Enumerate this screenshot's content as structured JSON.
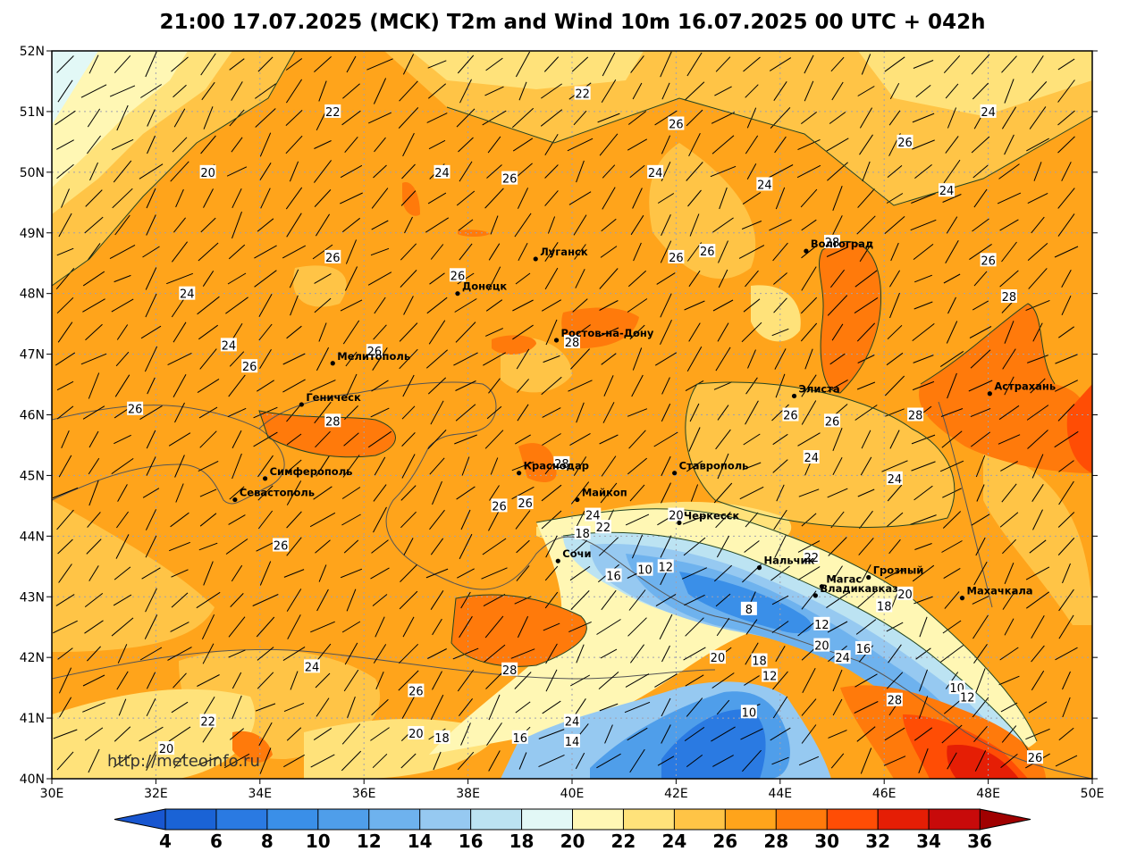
{
  "title": "21:00 17.07.2025 (MCK) T2m and Wind 10m 16.07.2025 00 UTC + 042h",
  "watermark": "http://meteoinfo.ru",
  "axes": {
    "lat_labels": [
      "52N",
      "51N",
      "50N",
      "49N",
      "48N",
      "47N",
      "46N",
      "45N",
      "44N",
      "43N",
      "42N",
      "41N",
      "40N"
    ],
    "lon_labels": [
      "30E",
      "32E",
      "34E",
      "36E",
      "38E",
      "40E",
      "42E",
      "44E",
      "46E",
      "48E",
      "50E"
    ]
  },
  "colorbar": {
    "labels": [
      "4",
      "6",
      "8",
      "10",
      "12",
      "14",
      "16",
      "18",
      "20",
      "22",
      "24",
      "26",
      "28",
      "30",
      "32",
      "34",
      "36"
    ],
    "colors": [
      "#1a63d6",
      "#2a7ae2",
      "#3a8fe8",
      "#4f9eea",
      "#6eb2ee",
      "#96c9f1",
      "#bce3f2",
      "#e2f8f6",
      "#fff7b4",
      "#ffe27a",
      "#ffc446",
      "#ffa41b",
      "#ff7a0b",
      "#ff4d05",
      "#e51e05",
      "#c80a0a"
    ],
    "low_end_color": "#1856d0",
    "high_end_color": "#a00000"
  },
  "cities": [
    {
      "name": "Луганск",
      "lon": 39.3,
      "lat": 48.57
    },
    {
      "name": "Донецк",
      "lon": 37.8,
      "lat": 48.0
    },
    {
      "name": "Волгоград",
      "lon": 44.5,
      "lat": 48.7
    },
    {
      "name": "Ростов-на-Дону",
      "lon": 39.7,
      "lat": 47.23
    },
    {
      "name": "Мелитополь",
      "lon": 35.4,
      "lat": 46.85
    },
    {
      "name": "Геническ",
      "lon": 34.8,
      "lat": 46.17
    },
    {
      "name": "Элиста",
      "lon": 44.27,
      "lat": 46.31
    },
    {
      "name": "Астрахань",
      "lon": 48.03,
      "lat": 46.35
    },
    {
      "name": "Краснодар",
      "lon": 38.98,
      "lat": 45.04
    },
    {
      "name": "Ставрополь",
      "lon": 41.97,
      "lat": 45.04
    },
    {
      "name": "Симферополь",
      "lon": 34.1,
      "lat": 44.95
    },
    {
      "name": "Севастополь",
      "lon": 33.52,
      "lat": 44.6
    },
    {
      "name": "Майкоп",
      "lon": 40.1,
      "lat": 44.6
    },
    {
      "name": "Черкесск",
      "lon": 42.06,
      "lat": 44.22
    },
    {
      "name": "Сочи",
      "lon": 39.73,
      "lat": 43.59
    },
    {
      "name": "Нальчик",
      "lon": 43.6,
      "lat": 43.48
    },
    {
      "name": "Магас",
      "lon": 44.8,
      "lat": 43.17
    },
    {
      "name": "Грозный",
      "lon": 45.7,
      "lat": 43.32
    },
    {
      "name": "Владикавказ",
      "lon": 44.68,
      "lat": 43.02
    },
    {
      "name": "Махачкала",
      "lon": 47.5,
      "lat": 42.98
    }
  ],
  "contour_labels": [
    {
      "t": "22",
      "lon": 35.4,
      "lat": 51.0
    },
    {
      "t": "22",
      "lon": 40.2,
      "lat": 51.3
    },
    {
      "t": "26",
      "lon": 42.0,
      "lat": 50.8
    },
    {
      "t": "24",
      "lon": 48.0,
      "lat": 51.0
    },
    {
      "t": "20",
      "lon": 33.0,
      "lat": 50.0
    },
    {
      "t": "24",
      "lon": 37.5,
      "lat": 50.0
    },
    {
      "t": "26",
      "lon": 38.8,
      "lat": 49.9
    },
    {
      "t": "24",
      "lon": 41.6,
      "lat": 50.0
    },
    {
      "t": "24",
      "lon": 43.7,
      "lat": 49.8
    },
    {
      "t": "26",
      "lon": 46.4,
      "lat": 50.5
    },
    {
      "t": "24",
      "lon": 47.2,
      "lat": 49.7
    },
    {
      "t": "26",
      "lon": 35.4,
      "lat": 48.6
    },
    {
      "t": "26",
      "lon": 37.8,
      "lat": 48.3
    },
    {
      "t": "26",
      "lon": 42.0,
      "lat": 48.6
    },
    {
      "t": "26",
      "lon": 42.6,
      "lat": 48.7
    },
    {
      "t": "28",
      "lon": 45.0,
      "lat": 48.85
    },
    {
      "t": "26",
      "lon": 48.0,
      "lat": 48.55
    },
    {
      "t": "24",
      "lon": 32.6,
      "lat": 48.0
    },
    {
      "t": "28",
      "lon": 48.4,
      "lat": 47.95
    },
    {
      "t": "24",
      "lon": 33.4,
      "lat": 47.15
    },
    {
      "t": "26",
      "lon": 36.2,
      "lat": 47.05
    },
    {
      "t": "28",
      "lon": 40.0,
      "lat": 47.2
    },
    {
      "t": "26",
      "lon": 33.8,
      "lat": 46.8
    },
    {
      "t": "26",
      "lon": 31.6,
      "lat": 46.1
    },
    {
      "t": "28",
      "lon": 35.4,
      "lat": 45.9
    },
    {
      "t": "26",
      "lon": 44.2,
      "lat": 46.0
    },
    {
      "t": "26",
      "lon": 45.0,
      "lat": 45.9
    },
    {
      "t": "28",
      "lon": 46.6,
      "lat": 46.0
    },
    {
      "t": "28",
      "lon": 39.8,
      "lat": 45.2
    },
    {
      "t": "24",
      "lon": 44.6,
      "lat": 45.3
    },
    {
      "t": "24",
      "lon": 46.2,
      "lat": 44.95
    },
    {
      "t": "26",
      "lon": 38.6,
      "lat": 44.5
    },
    {
      "t": "26",
      "lon": 39.1,
      "lat": 44.55
    },
    {
      "t": "24",
      "lon": 40.4,
      "lat": 44.35
    },
    {
      "t": "22",
      "lon": 40.6,
      "lat": 44.15
    },
    {
      "t": "20",
      "lon": 42.0,
      "lat": 44.35
    },
    {
      "t": "18",
      "lon": 40.2,
      "lat": 44.05
    },
    {
      "t": "26",
      "lon": 34.4,
      "lat": 43.85
    },
    {
      "t": "22",
      "lon": 44.6,
      "lat": 43.65
    },
    {
      "t": "16",
      "lon": 40.8,
      "lat": 43.35
    },
    {
      "t": "10",
      "lon": 41.4,
      "lat": 43.45
    },
    {
      "t": "12",
      "lon": 41.8,
      "lat": 43.5
    },
    {
      "t": "20",
      "lon": 46.4,
      "lat": 43.05
    },
    {
      "t": "18",
      "lon": 46.0,
      "lat": 42.85
    },
    {
      "t": "8",
      "lon": 43.4,
      "lat": 42.8
    },
    {
      "t": "12",
      "lon": 44.8,
      "lat": 42.55
    },
    {
      "t": "20",
      "lon": 44.8,
      "lat": 42.2
    },
    {
      "t": "24",
      "lon": 45.2,
      "lat": 42.0
    },
    {
      "t": "16",
      "lon": 45.6,
      "lat": 42.15
    },
    {
      "t": "20",
      "lon": 42.8,
      "lat": 42.0
    },
    {
      "t": "18",
      "lon": 43.6,
      "lat": 41.95
    },
    {
      "t": "12",
      "lon": 43.8,
      "lat": 41.7
    },
    {
      "t": "24",
      "lon": 35.0,
      "lat": 41.85
    },
    {
      "t": "26",
      "lon": 37.0,
      "lat": 41.45
    },
    {
      "t": "28",
      "lon": 38.8,
      "lat": 41.8
    },
    {
      "t": "28",
      "lon": 46.2,
      "lat": 41.3
    },
    {
      "t": "10",
      "lon": 47.4,
      "lat": 41.5
    },
    {
      "t": "12",
      "lon": 47.6,
      "lat": 41.35
    },
    {
      "t": "10",
      "lon": 43.4,
      "lat": 41.1
    },
    {
      "t": "22",
      "lon": 33.0,
      "lat": 40.95
    },
    {
      "t": "24",
      "lon": 40.0,
      "lat": 40.95
    },
    {
      "t": "20",
      "lon": 37.0,
      "lat": 40.75
    },
    {
      "t": "18",
      "lon": 37.5,
      "lat": 40.68
    },
    {
      "t": "16",
      "lon": 39.0,
      "lat": 40.68
    },
    {
      "t": "14",
      "lon": 40.0,
      "lat": 40.62
    },
    {
      "t": "20",
      "lon": 32.2,
      "lat": 40.5
    },
    {
      "t": "26",
      "lon": 48.9,
      "lat": 40.35
    }
  ]
}
